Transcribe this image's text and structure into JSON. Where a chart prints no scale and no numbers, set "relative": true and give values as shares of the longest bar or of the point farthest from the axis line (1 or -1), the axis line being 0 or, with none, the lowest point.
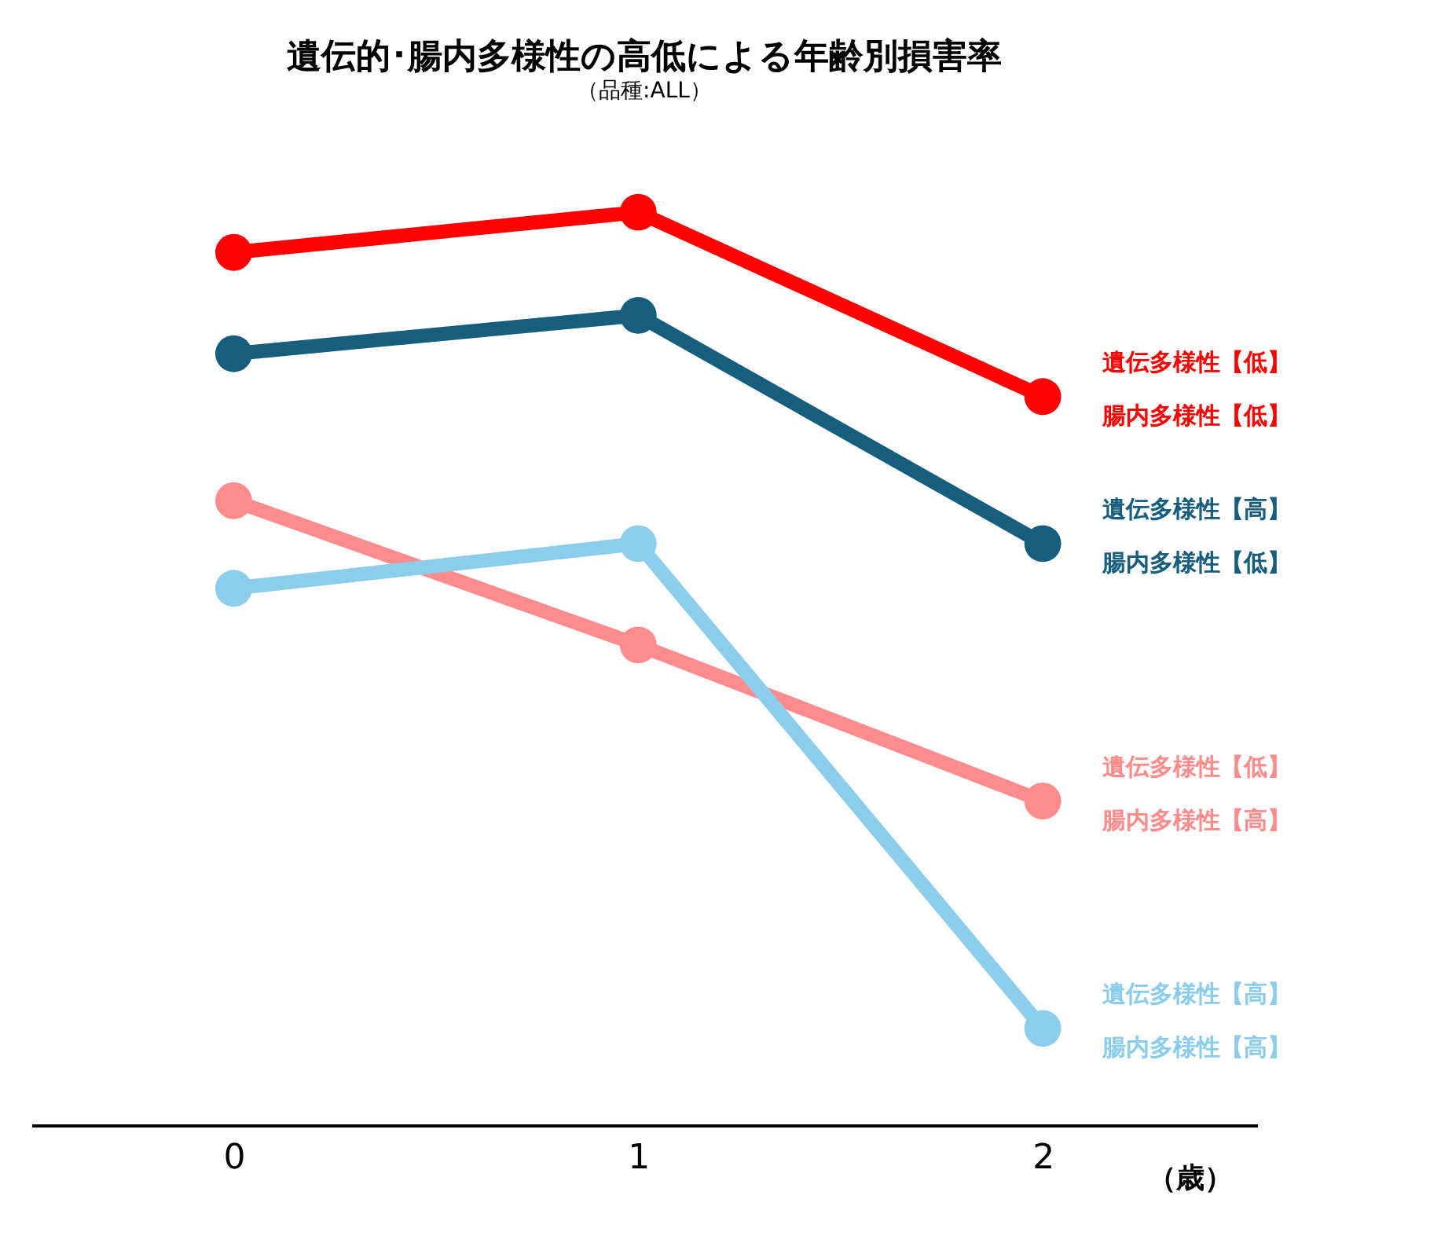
{
  "chart_data": {
    "type": "line",
    "title": "遺伝的･腸内多様性の高低による年齢別損害率",
    "subtitle": "（品種:ALL）",
    "xlabel": "（歳）",
    "relative": true,
    "marker": "circle",
    "line_style": "solid",
    "grid": false,
    "legend": false,
    "tick_labels": "x",
    "categories": [
      "0",
      "1",
      "2"
    ],
    "series": [
      {
        "name": "遺伝多様性【低】腸内多様性【低】",
        "color": "#ff0000",
        "values": [
          0.956,
          1.0,
          0.798
        ]
      },
      {
        "name": "遺伝多様性【高】腸内多様性【低】",
        "color": "#175e7e",
        "values": [
          0.845,
          0.887,
          0.637
        ]
      },
      {
        "name": "遺伝多様性【低】腸内多様性【高】",
        "color": "#ff8c8c",
        "values": [
          0.684,
          0.526,
          0.355
        ]
      },
      {
        "name": "遺伝多様性【高】腸内多様性【高】",
        "color": "#8bcdea",
        "values": [
          0.588,
          0.637,
          0.106
        ]
      }
    ]
  }
}
